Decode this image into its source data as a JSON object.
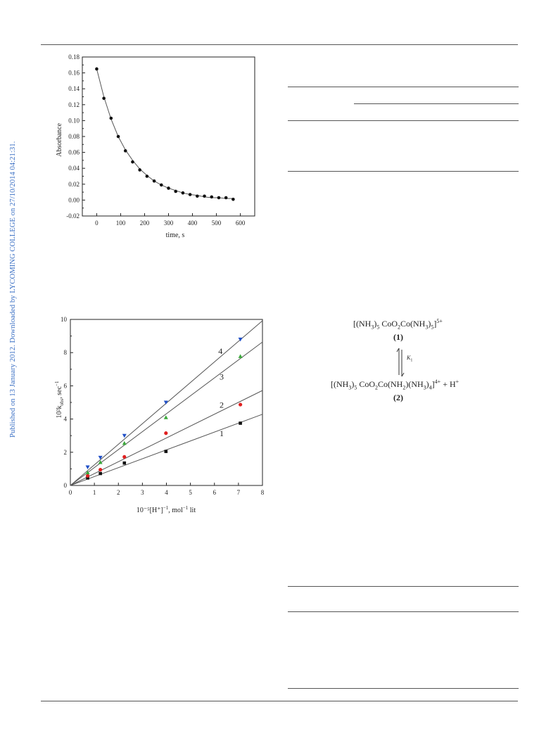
{
  "sidebar": {
    "watermark": "Published on 13 January 2012. Downloaded by LYCOMING COLLEGE on 27/10/2014 04:21:31."
  },
  "figures": {
    "fig1": {
      "ylabel": "Absorbance",
      "xlabel": "time, s",
      "yticks": [
        "-0.02",
        "0.00",
        "0.02",
        "0.04",
        "0.06",
        "0.08",
        "0.10",
        "0.12",
        "0.14",
        "0.16",
        "0.18"
      ],
      "xticks": [
        "0",
        "100",
        "200",
        "300",
        "400",
        "500",
        "600"
      ]
    },
    "fig2": {
      "ylabel": "10²k",
      "ylabel_sub": "obs",
      "ylabel_tail": ", sec",
      "ylabel_sup": "−1",
      "xlabel": "10⁻⁵[H⁺]",
      "xlabel_sup": "−1",
      "xlabel_tail": ", mol",
      "xlabel_sup2": "−1",
      "xlabel_end": " lit",
      "yticks": [
        "0",
        "2",
        "4",
        "6",
        "8",
        "10"
      ],
      "xticks": [
        "0",
        "1",
        "2",
        "3",
        "4",
        "5",
        "6",
        "7",
        "8"
      ],
      "line_labels": [
        "1",
        "2",
        "3",
        "4"
      ]
    }
  },
  "scheme": {
    "species1_pre": "[(NH",
    "species1_mid": ")",
    "species1_core": "CoO",
    "species1_co": "Co(NH",
    "species1_end": ")",
    "species1_charge": "5+",
    "label1": "(1)",
    "eq_const": "K",
    "eq_const_sub": "1",
    "species2_pre": "[(NH",
    "species2_core": "CoO",
    "species2_co": "Co(NH",
    "species2_nh2": ")(NH",
    "species2_charge": "4+",
    "species2_plus": "+ H",
    "species2_plus_sup": "+",
    "label2": "(2)"
  },
  "chart_data": [
    {
      "type": "scatter",
      "title": "",
      "xlabel": "time, s",
      "ylabel": "Absorbance",
      "xlim": [
        -60,
        660
      ],
      "ylim": [
        -0.02,
        0.18
      ],
      "grid": false,
      "x": [
        0,
        30,
        60,
        90,
        120,
        150,
        180,
        210,
        240,
        270,
        300,
        330,
        360,
        390,
        420,
        450,
        480,
        510,
        540,
        570
      ],
      "series": [
        {
          "values": [
            0.165,
            0.128,
            0.103,
            0.08,
            0.062,
            0.048,
            0.038,
            0.03,
            0.024,
            0.019,
            0.015,
            0.011,
            0.009,
            0.007,
            0.005,
            0.005,
            0.004,
            0.003,
            0.003,
            0.001
          ]
        }
      ],
      "fit_curve": {
        "type": "exponential",
        "values_at_x": [
          0.165,
          0.13,
          0.102,
          0.08,
          0.063,
          0.05,
          0.039,
          0.031,
          0.024,
          0.019,
          0.015,
          0.012,
          0.009,
          0.007,
          0.006,
          0.004,
          0.003,
          0.003,
          0.002,
          0.002
        ]
      }
    },
    {
      "type": "scatter",
      "title": "",
      "xlabel": "10⁻⁵[H⁺]⁻¹, mol⁻¹ lit",
      "ylabel": "10²k_obs, sec⁻¹",
      "xlim": [
        0,
        8
      ],
      "ylim": [
        0,
        10
      ],
      "grid": false,
      "series": [
        {
          "name": "1",
          "marker": "square",
          "color": "#111111",
          "x": [
            0.72,
            1.25,
            2.25,
            3.98,
            7.08
          ],
          "values": [
            0.45,
            0.72,
            1.35,
            2.05,
            3.75
          ],
          "fit_slope": 0.536
        },
        {
          "name": "2",
          "marker": "circle",
          "color": "#e02020",
          "x": [
            0.72,
            1.25,
            2.25,
            3.98,
            7.08
          ],
          "values": [
            0.58,
            0.95,
            1.72,
            3.15,
            4.87
          ],
          "fit_slope": 0.715
        },
        {
          "name": "3",
          "marker": "triangle-up",
          "color": "#3aa83a",
          "x": [
            0.72,
            1.25,
            2.25,
            3.98,
            7.08
          ],
          "values": [
            0.78,
            1.4,
            2.55,
            4.1,
            7.78
          ],
          "fit_slope": 1.08
        },
        {
          "name": "4",
          "marker": "triangle-down",
          "color": "#2050c8",
          "x": [
            0.72,
            1.25,
            2.25,
            3.98,
            7.08
          ],
          "values": [
            1.1,
            1.68,
            3.0,
            5.0,
            8.8
          ],
          "fit_slope": 1.24
        }
      ]
    }
  ]
}
